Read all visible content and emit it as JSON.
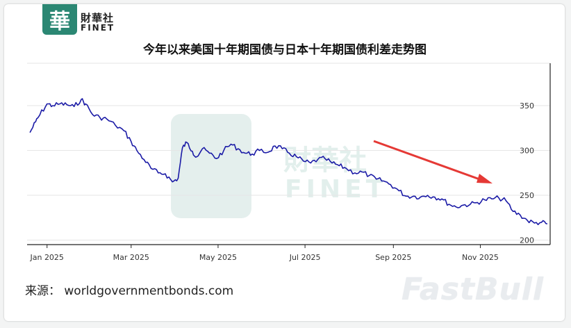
{
  "header": {
    "logo_glyph": "華",
    "brand_cn": "財華社",
    "brand_en": "FINET",
    "brand_color": "#2b8773"
  },
  "title": "今年以来美国十年期国债与日本十年期国债利差走势图",
  "source": "来源：  worldgovernmentbonds.com",
  "watermarks": {
    "finet_cn": "財華社",
    "finet_en": "FINET",
    "fastbull": "FastBull"
  },
  "annotation": {
    "type": "arrow",
    "color": "#e53935",
    "meaning": "downward trend"
  },
  "chart_data": {
    "type": "line",
    "title": "今年以来美国十年期国债与日本十年期国债利差走势图",
    "xlabel": "",
    "ylabel": "",
    "x_ticks": [
      "Jan 2025",
      "Mar 2025",
      "May 2025",
      "Jul 2025",
      "Sep 2025",
      "Nov 2025"
    ],
    "y_ticks": [
      200,
      250,
      300,
      350
    ],
    "ylim": [
      195,
      395
    ],
    "y_axis_position": "right",
    "grid": "horizontal",
    "line_color": "#1a1aa6",
    "series": [
      {
        "name": "",
        "dates": [
          "2024-12-20",
          "2024-12-24",
          "2024-12-27",
          "2025-01-01",
          "2025-01-05",
          "2025-01-10",
          "2025-01-15",
          "2025-01-20",
          "2025-01-25",
          "2025-01-28",
          "2025-02-02",
          "2025-02-07",
          "2025-02-12",
          "2025-02-18",
          "2025-02-24",
          "2025-03-01",
          "2025-03-05",
          "2025-03-10",
          "2025-03-15",
          "2025-03-20",
          "2025-03-25",
          "2025-03-30",
          "2025-04-03",
          "2025-04-06",
          "2025-04-09",
          "2025-04-13",
          "2025-04-16",
          "2025-04-20",
          "2025-04-25",
          "2025-04-30",
          "2025-05-05",
          "2025-05-10",
          "2025-05-15",
          "2025-05-20",
          "2025-05-25",
          "2025-05-30",
          "2025-06-05",
          "2025-06-10",
          "2025-06-15",
          "2025-06-20",
          "2025-06-25",
          "2025-06-30",
          "2025-07-05",
          "2025-07-10",
          "2025-07-15",
          "2025-07-20",
          "2025-07-25",
          "2025-07-30",
          "2025-08-05",
          "2025-08-10",
          "2025-08-15",
          "2025-08-20",
          "2025-08-25",
          "2025-08-30",
          "2025-09-05",
          "2025-09-10",
          "2025-09-15",
          "2025-09-20",
          "2025-09-25",
          "2025-09-30",
          "2025-10-05",
          "2025-10-10",
          "2025-10-15",
          "2025-10-20",
          "2025-10-25",
          "2025-10-30",
          "2025-11-04",
          "2025-11-09",
          "2025-11-14",
          "2025-11-19",
          "2025-11-24",
          "2025-11-29",
          "2025-12-04",
          "2025-12-09",
          "2025-12-14",
          "2025-12-18"
        ],
        "values": [
          320,
          332,
          340,
          352,
          350,
          352,
          351,
          349,
          357,
          352,
          340,
          337,
          335,
          328,
          322,
          310,
          300,
          290,
          280,
          275,
          274,
          265,
          269,
          303,
          309,
          299,
          293,
          302,
          297,
          291,
          300,
          307,
          302,
          297,
          296,
          300,
          298,
          305,
          302,
          297,
          293,
          288,
          286,
          290,
          291,
          286,
          283,
          280,
          275,
          276,
          272,
          268,
          266,
          262,
          255,
          249,
          249,
          248,
          250,
          248,
          246,
          240,
          237,
          239,
          240,
          242,
          245,
          246,
          247,
          244,
          232,
          228,
          222,
          219,
          220,
          218
        ]
      }
    ]
  }
}
